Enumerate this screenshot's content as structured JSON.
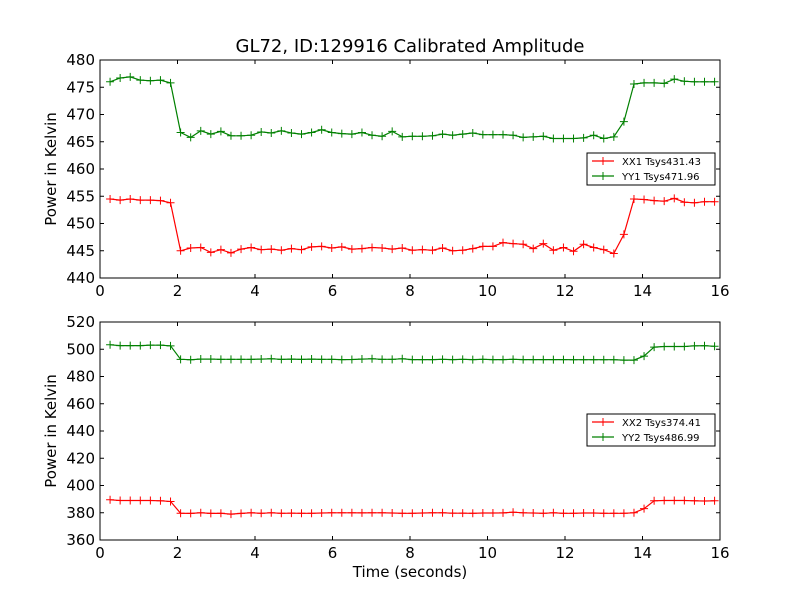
{
  "chart_data": [
    {
      "type": "line",
      "title": "GL72, ID:129916 Calibrated Amplitude",
      "xlabel": "",
      "ylabel": "Power in Kelvin",
      "xlim": [
        0,
        16
      ],
      "ylim": [
        440,
        480
      ],
      "xticks": [
        "0",
        "2",
        "4",
        "6",
        "8",
        "10",
        "12",
        "14",
        "16"
      ],
      "yticks": [
        "440",
        "445",
        "450",
        "455",
        "460",
        "465",
        "470",
        "475",
        "480"
      ],
      "grid": false,
      "legend_position": "center-right",
      "x": [
        0.26,
        0.52,
        0.78,
        1.04,
        1.3,
        1.56,
        1.82,
        2.08,
        2.34,
        2.6,
        2.86,
        3.12,
        3.38,
        3.64,
        3.9,
        4.16,
        4.42,
        4.68,
        4.94,
        5.2,
        5.46,
        5.72,
        5.98,
        6.24,
        6.5,
        6.76,
        7.02,
        7.28,
        7.54,
        7.8,
        8.06,
        8.32,
        8.58,
        8.84,
        9.1,
        9.36,
        9.62,
        9.88,
        10.14,
        10.4,
        10.66,
        10.92,
        11.18,
        11.44,
        11.7,
        11.96,
        12.22,
        12.48,
        12.74,
        13.0,
        13.26,
        13.52,
        13.78,
        14.04,
        14.3,
        14.56,
        14.82,
        15.08,
        15.34,
        15.6,
        15.86
      ],
      "series": [
        {
          "name": "XX1 Tsys431.43",
          "color": "#ff0000",
          "values": [
            454.5,
            454.3,
            454.5,
            454.3,
            454.3,
            454.2,
            453.8,
            445.0,
            445.5,
            445.6,
            444.7,
            445.2,
            444.6,
            445.3,
            445.6,
            445.2,
            445.3,
            445.1,
            445.4,
            445.2,
            445.7,
            445.8,
            445.5,
            445.7,
            445.3,
            445.4,
            445.6,
            445.5,
            445.3,
            445.5,
            445.1,
            445.2,
            445.1,
            445.5,
            445.0,
            445.1,
            445.4,
            445.8,
            445.8,
            446.5,
            446.3,
            446.2,
            445.4,
            446.3,
            445.1,
            445.6,
            444.9,
            446.2,
            445.6,
            445.2,
            444.5,
            448.0,
            454.5,
            454.4,
            454.2,
            454.1,
            454.6,
            453.9,
            453.8,
            454.0,
            454.0
          ]
        },
        {
          "name": "YY1 Tsys471.96",
          "color": "#008000",
          "values": [
            476.0,
            476.7,
            476.9,
            476.3,
            476.2,
            476.3,
            475.8,
            466.7,
            465.8,
            467.0,
            466.4,
            466.9,
            466.1,
            466.1,
            466.2,
            466.8,
            466.6,
            467.0,
            466.6,
            466.4,
            466.7,
            467.2,
            466.7,
            466.5,
            466.4,
            466.7,
            466.2,
            466.0,
            466.9,
            465.9,
            466.0,
            466.0,
            466.1,
            466.4,
            466.2,
            466.4,
            466.6,
            466.3,
            466.3,
            466.3,
            466.2,
            465.8,
            465.9,
            466.0,
            465.6,
            465.6,
            465.6,
            465.7,
            466.2,
            465.6,
            465.9,
            468.7,
            475.6,
            475.8,
            475.8,
            475.7,
            476.5,
            476.1,
            476.0,
            476.0,
            476.0
          ]
        }
      ]
    },
    {
      "type": "line",
      "title": "",
      "xlabel": "Time (seconds)",
      "ylabel": "Power in Kelvin",
      "xlim": [
        0,
        16
      ],
      "ylim": [
        360,
        520
      ],
      "xticks": [
        "0",
        "2",
        "4",
        "6",
        "8",
        "10",
        "12",
        "14",
        "16"
      ],
      "yticks": [
        "360",
        "380",
        "400",
        "420",
        "440",
        "460",
        "480",
        "500",
        "520"
      ],
      "grid": false,
      "legend_position": "center-right",
      "x": [
        0.26,
        0.52,
        0.78,
        1.04,
        1.3,
        1.56,
        1.82,
        2.08,
        2.34,
        2.6,
        2.86,
        3.12,
        3.38,
        3.64,
        3.9,
        4.16,
        4.42,
        4.68,
        4.94,
        5.2,
        5.46,
        5.72,
        5.98,
        6.24,
        6.5,
        6.76,
        7.02,
        7.28,
        7.54,
        7.8,
        8.06,
        8.32,
        8.58,
        8.84,
        9.1,
        9.36,
        9.62,
        9.88,
        10.14,
        10.4,
        10.66,
        10.92,
        11.18,
        11.44,
        11.7,
        11.96,
        12.22,
        12.48,
        12.74,
        13.0,
        13.26,
        13.52,
        13.78,
        14.04,
        14.3,
        14.56,
        14.82,
        15.08,
        15.34,
        15.6,
        15.86
      ],
      "series": [
        {
          "name": "XX2 Tsys374.41",
          "color": "#ff0000",
          "values": [
            389.5,
            389.0,
            389.0,
            389.0,
            389.0,
            388.8,
            388.3,
            379.6,
            379.5,
            380.0,
            379.5,
            379.6,
            379.0,
            379.5,
            380.0,
            379.6,
            380.0,
            379.6,
            379.7,
            379.6,
            379.6,
            379.8,
            380.0,
            380.0,
            380.0,
            379.9,
            380.0,
            380.0,
            379.8,
            379.6,
            379.6,
            379.8,
            380.0,
            380.0,
            379.7,
            379.7,
            379.6,
            379.8,
            379.8,
            379.9,
            380.4,
            380.0,
            379.8,
            379.6,
            380.0,
            379.6,
            379.6,
            379.8,
            379.8,
            379.6,
            379.6,
            379.6,
            380.0,
            383.0,
            388.8,
            389.0,
            389.0,
            389.0,
            388.8,
            388.6,
            388.8
          ]
        },
        {
          "name": "YY2 Tsys486.99",
          "color": "#008000",
          "values": [
            503.3,
            502.7,
            502.7,
            502.7,
            503.0,
            503.0,
            502.5,
            492.6,
            492.3,
            492.8,
            492.8,
            492.6,
            492.6,
            492.6,
            492.6,
            492.8,
            493.0,
            492.6,
            492.8,
            492.6,
            492.8,
            492.6,
            492.6,
            492.4,
            492.5,
            492.8,
            493.0,
            492.6,
            492.6,
            493.0,
            492.4,
            492.4,
            492.4,
            492.6,
            492.4,
            492.6,
            492.4,
            492.6,
            492.4,
            492.4,
            492.6,
            492.4,
            492.4,
            492.4,
            492.4,
            492.4,
            492.3,
            492.3,
            492.3,
            492.3,
            492.3,
            492.0,
            492.0,
            495.0,
            501.6,
            502.0,
            502.0,
            502.0,
            502.5,
            502.6,
            502.2
          ]
        }
      ]
    }
  ]
}
